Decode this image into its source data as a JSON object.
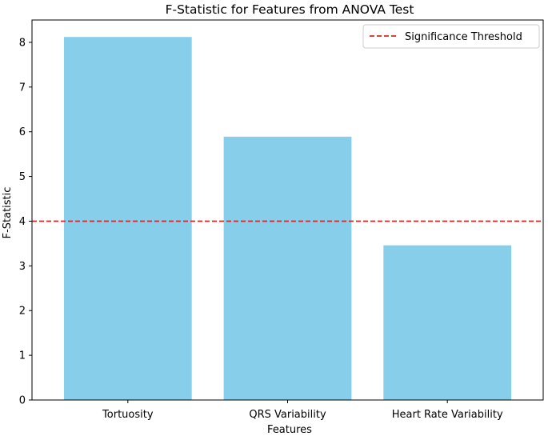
{
  "chart_data": {
    "type": "bar",
    "title": "F-Statistic for Features from ANOVA Test",
    "xlabel": "Features",
    "ylabel": "F-Statistic",
    "categories": [
      "Tortuosity",
      "QRS Variability",
      "Heart Rate Variability"
    ],
    "values": [
      8.12,
      5.89,
      3.46
    ],
    "ylim": [
      0,
      8.5
    ],
    "yticks": [
      0,
      1,
      2,
      3,
      4,
      5,
      6,
      7,
      8
    ],
    "bar_color": "#87ceeb",
    "grid": false,
    "threshold": {
      "value": 4,
      "label": "Significance Threshold",
      "color": "#d62728",
      "style": "dashed"
    },
    "legend": {
      "placement": "top-right",
      "entries": [
        "Significance Threshold"
      ]
    }
  }
}
